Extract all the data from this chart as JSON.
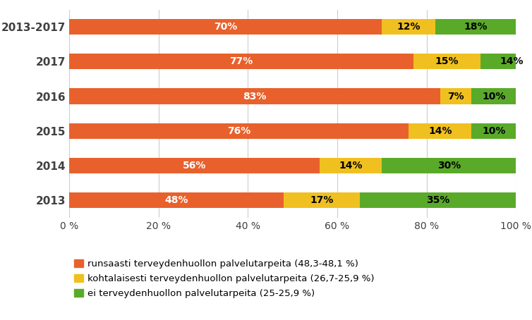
{
  "categories": [
    "2013-2017",
    "2017",
    "2016",
    "2015",
    "2014",
    "2013"
  ],
  "orange_vals": [
    70,
    77,
    83,
    76,
    56,
    48
  ],
  "yellow_vals": [
    12,
    15,
    7,
    14,
    14,
    17
  ],
  "green_vals": [
    18,
    14,
    10,
    10,
    30,
    35
  ],
  "orange_labels": [
    "70%",
    "77%",
    "83%",
    "76%",
    "56%",
    "48%"
  ],
  "yellow_labels": [
    "12%",
    "15%",
    "7%",
    "14%",
    "14%",
    "17%"
  ],
  "green_labels": [
    "18%",
    "14%",
    "10%",
    "10%",
    "30%",
    "35%"
  ],
  "orange_color": "#E8612C",
  "yellow_color": "#F0C020",
  "green_color": "#5AAA2A",
  "legend_labels": [
    "runsaasti terveydenhuollon palvelutarpeita (48,3-48,1 %)",
    "kohtalaisesti terveydenhuollon palvelutarpeita (26,7-25,9 %)",
    "ei terveydenhuollon palvelutarpeita (25-25,9 %)"
  ],
  "xticks": [
    0,
    20,
    40,
    60,
    80,
    100
  ],
  "xtick_labels": [
    "0 %",
    "20 %",
    "40 %",
    "60 %",
    "80 %",
    "100 %"
  ],
  "background_color": "#ffffff",
  "bar_height": 0.45,
  "label_fontsize": 10,
  "legend_fontsize": 9.5,
  "ytick_fontsize": 11,
  "xtick_fontsize": 10,
  "ytick_color": "#404040",
  "label_color_orange": "#ffffff",
  "label_color_other": "#000000"
}
